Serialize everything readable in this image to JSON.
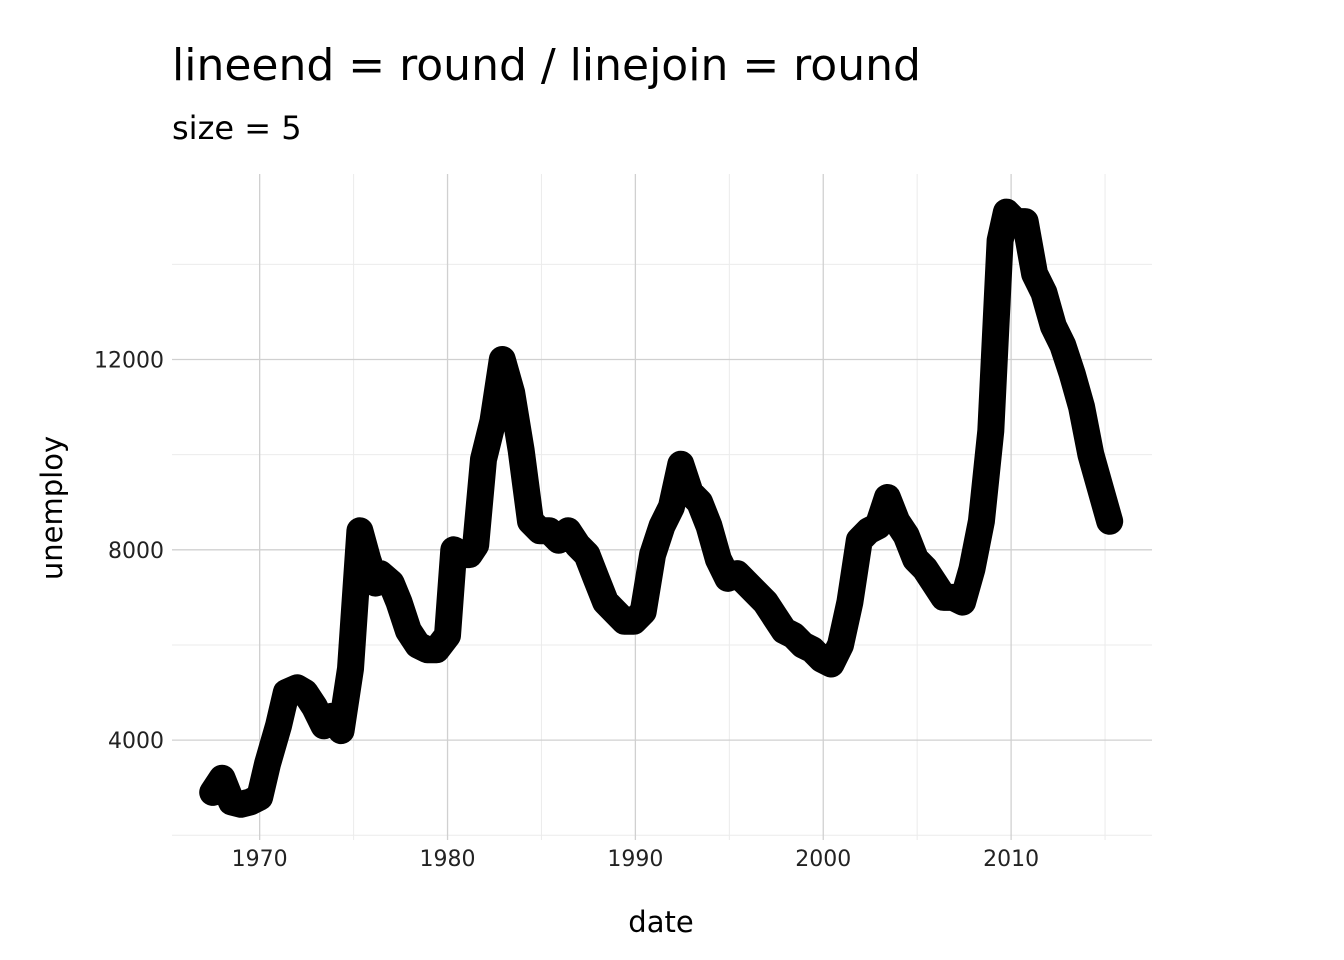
{
  "chart_data": {
    "type": "line",
    "title": "lineend = round / linejoin = round",
    "subtitle": "size = 5",
    "xlabel": "date",
    "ylabel": "unemploy",
    "x_ticks": [
      "1970",
      "1980",
      "1990",
      "2000",
      "2010"
    ],
    "y_ticks": [
      "4000",
      "8000",
      "12000"
    ],
    "xlim": [
      "1965-05-01",
      "2017-07-01"
    ],
    "ylim": [
      1900,
      15900
    ],
    "grid": true,
    "line_color": "#000000",
    "series": [
      {
        "x": [
          "1967-07-01",
          "1968-01-01",
          "1968-07-01",
          "1969-01-01",
          "1969-07-01",
          "1970-01-01",
          "1970-06-01",
          "1971-01-01",
          "1971-06-01",
          "1972-01-01",
          "1972-06-01",
          "1972-12-01",
          "1973-06-01",
          "1973-11-01",
          "1974-05-01",
          "1974-11-01",
          "1975-05-01",
          "1975-10-01",
          "1976-03-01",
          "1976-06-01",
          "1977-01-01",
          "1977-06-01",
          "1977-12-01",
          "1978-06-01",
          "1978-12-01",
          "1979-06-01",
          "1980-01-01",
          "1980-05-01",
          "1980-10-01",
          "1981-03-01",
          "1981-07-01",
          "1981-12-01",
          "1982-06-01",
          "1982-12-01",
          "1983-06-01",
          "1983-12-01",
          "1984-06-01",
          "1984-12-01",
          "1985-06-01",
          "1985-12-01",
          "1986-06-01",
          "1986-12-01",
          "1987-06-01",
          "1987-12-01",
          "1988-06-01",
          "1988-12-01",
          "1989-06-01",
          "1989-12-01",
          "1990-06-01",
          "1990-12-01",
          "1991-06-01",
          "1991-12-01",
          "1992-06-01",
          "1992-12-01",
          "1993-06-01",
          "1993-12-01",
          "1994-06-01",
          "1994-12-01",
          "1995-06-01",
          "1995-12-01",
          "1996-06-01",
          "1996-12-01",
          "1997-06-01",
          "1997-12-01",
          "1998-06-01",
          "1998-12-01",
          "1999-06-01",
          "1999-12-01",
          "2000-06-01",
          "2000-12-01",
          "2001-06-01",
          "2001-12-01",
          "2002-06-01",
          "2002-12-01",
          "2003-06-01",
          "2003-12-01",
          "2004-06-01",
          "2004-12-01",
          "2005-06-01",
          "2005-12-01",
          "2006-06-01",
          "2006-12-01",
          "2007-06-01",
          "2007-12-01",
          "2008-06-01",
          "2008-12-01",
          "2009-06-01",
          "2009-10-01",
          "2010-04-01",
          "2010-10-01",
          "2011-04-01",
          "2011-10-01",
          "2012-04-01",
          "2012-10-01",
          "2013-04-01",
          "2013-10-01",
          "2014-04-01",
          "2014-10-01",
          "2015-04-01"
        ],
        "y": [
          2900,
          3200,
          2700,
          2650,
          2700,
          2800,
          3500,
          4300,
          5000,
          5100,
          5000,
          4700,
          4300,
          4500,
          4200,
          5500,
          8400,
          7800,
          7300,
          7500,
          7300,
          6900,
          6300,
          6000,
          5900,
          5900,
          6200,
          8000,
          7900,
          7900,
          8100,
          9900,
          10700,
          12000,
          11300,
          10100,
          8600,
          8400,
          8400,
          8200,
          8400,
          8100,
          7900,
          7400,
          6900,
          6700,
          6500,
          6500,
          6700,
          7900,
          8500,
          8900,
          9800,
          9200,
          9000,
          8500,
          7800,
          7400,
          7500,
          7300,
          7100,
          6900,
          6600,
          6300,
          6200,
          6000,
          5900,
          5700,
          5600,
          6000,
          6900,
          8200,
          8400,
          8500,
          9100,
          8600,
          8300,
          7800,
          7600,
          7300,
          7000,
          7000,
          6900,
          7600,
          8600,
          10500,
          14500,
          15100,
          14900,
          14900,
          13800,
          13400,
          12700,
          12300,
          11700,
          11000,
          10000,
          9300,
          8600
        ]
      }
    ]
  }
}
